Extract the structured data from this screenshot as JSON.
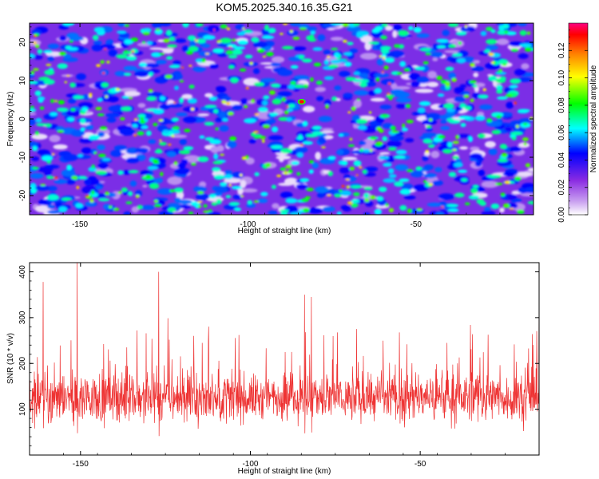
{
  "title": "KOM5.2025.340.16.35.G21",
  "chart_data": [
    {
      "type": "heatmap",
      "title": "KOM5.2025.340.16.35.G21",
      "xlabel": "Height of straight line (km)",
      "ylabel": "Frequency (Hz)",
      "xlim": [
        -165,
        -15
      ],
      "ylim": [
        -25,
        25
      ],
      "x_ticks": [
        -150,
        -100,
        -50
      ],
      "x_tick_labels": [
        "-150",
        "-100",
        "-50"
      ],
      "y_ticks": [
        -20,
        -10,
        0,
        10,
        20
      ],
      "y_tick_labels": [
        "-20",
        "-10",
        "0",
        "10",
        "20"
      ],
      "colorbar": {
        "label": "Normalized spectral amplitude",
        "range": [
          0,
          0.14
        ],
        "ticks": [
          0,
          0.02,
          0.04,
          0.06,
          0.08,
          0.1,
          0.12
        ],
        "tick_labels": [
          "0.00",
          "0.02",
          "0.04",
          "0.06",
          "0.08",
          "0.10",
          "0.12"
        ],
        "colormap": [
          "#ffffff",
          "#c9a0f0",
          "#8a2be2",
          "#0000ff",
          "#00ffff",
          "#00ff00",
          "#ffff00",
          "#ff8000",
          "#ff0000",
          "#ff0080"
        ]
      },
      "peak": {
        "x": -84,
        "y": 4.5,
        "value": 0.13
      }
    },
    {
      "type": "line",
      "xlabel": "Height of straight line (km)",
      "ylabel": "SNR (10 * v/v)",
      "xlim": [
        -165,
        -15
      ],
      "ylim": [
        0,
        420
      ],
      "x_ticks": [
        -150,
        -100,
        -50
      ],
      "x_tick_labels": [
        "-150",
        "-100",
        "-50"
      ],
      "y_ticks": [
        100,
        200,
        300,
        400
      ],
      "y_tick_labels": [
        "100",
        "200",
        "300",
        "400"
      ],
      "color": "#ee3333",
      "series_stats": {
        "baseline": 125,
        "spread": 60,
        "max": 420
      },
      "notable_peaks": [
        {
          "x": -151,
          "y": 420
        },
        {
          "x": -127,
          "y": 400
        },
        {
          "x": -161,
          "y": 378
        },
        {
          "x": -84,
          "y": 350
        },
        {
          "x": -82,
          "y": 345
        },
        {
          "x": -15,
          "y": 380
        }
      ]
    }
  ]
}
